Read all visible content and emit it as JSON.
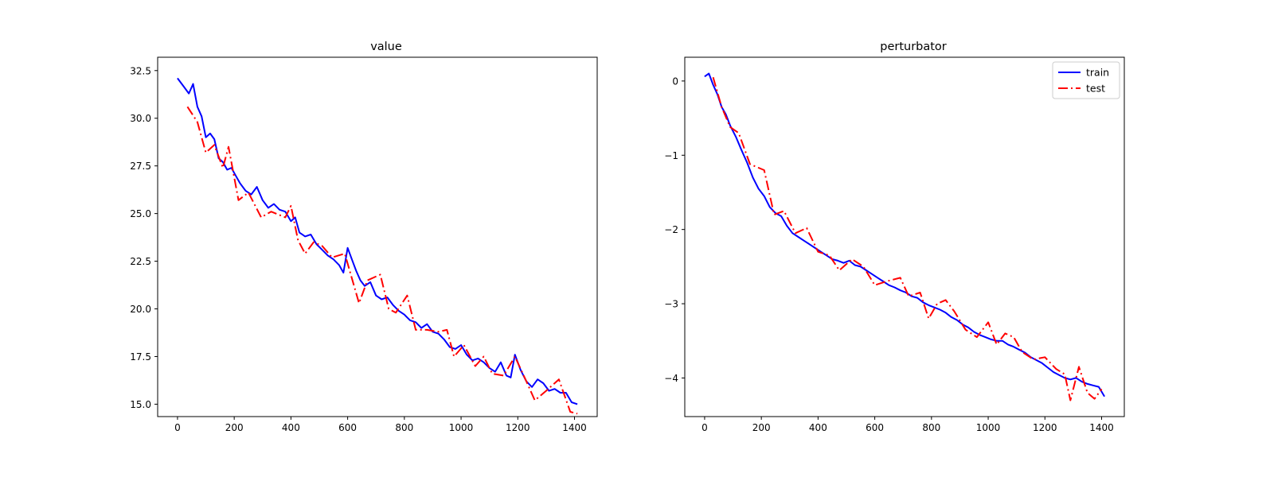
{
  "chart_data": [
    {
      "type": "line",
      "title": "value",
      "xlabel": "",
      "ylabel": "",
      "xlim": [
        -70,
        1480
      ],
      "ylim": [
        14.35,
        33.2
      ],
      "xticks": [
        0,
        200,
        400,
        600,
        800,
        1000,
        1200,
        1400
      ],
      "yticks": [
        15.0,
        17.5,
        20.0,
        22.5,
        25.0,
        27.5,
        30.0,
        32.5
      ],
      "ytick_decimals": 1,
      "grid": false,
      "legend": null,
      "series": [
        {
          "name": "train",
          "color": "#0000ff",
          "style": "solid",
          "x": [
            0,
            20,
            40,
            55,
            70,
            85,
            100,
            115,
            130,
            145,
            160,
            175,
            190,
            205,
            220,
            240,
            260,
            280,
            300,
            320,
            340,
            360,
            380,
            400,
            415,
            430,
            450,
            470,
            490,
            510,
            530,
            550,
            570,
            585,
            600,
            615,
            630,
            645,
            660,
            680,
            700,
            720,
            740,
            760,
            780,
            800,
            820,
            840,
            860,
            880,
            900,
            920,
            940,
            960,
            980,
            1000,
            1020,
            1040,
            1060,
            1080,
            1100,
            1120,
            1140,
            1160,
            1175,
            1190,
            1210,
            1230,
            1250,
            1270,
            1290,
            1310,
            1330,
            1350,
            1370,
            1390,
            1410
          ],
          "y": [
            32.1,
            31.7,
            31.3,
            31.8,
            30.6,
            30.1,
            29.0,
            29.2,
            28.9,
            27.9,
            27.7,
            27.3,
            27.4,
            27.0,
            26.6,
            26.2,
            26.0,
            26.4,
            25.7,
            25.3,
            25.5,
            25.2,
            25.1,
            24.6,
            24.8,
            24.0,
            23.8,
            23.9,
            23.4,
            23.1,
            22.8,
            22.6,
            22.3,
            21.9,
            23.2,
            22.6,
            22.0,
            21.5,
            21.2,
            21.4,
            20.7,
            20.5,
            20.6,
            20.2,
            19.9,
            19.7,
            19.4,
            19.3,
            19.0,
            19.2,
            18.8,
            18.7,
            18.4,
            18.0,
            17.9,
            18.1,
            17.6,
            17.3,
            17.4,
            17.2,
            16.9,
            16.7,
            17.2,
            16.5,
            16.4,
            17.6,
            16.8,
            16.2,
            15.9,
            16.3,
            16.1,
            15.7,
            15.8,
            15.6,
            15.6,
            15.1,
            15.0
          ]
        },
        {
          "name": "test",
          "color": "#ff0000",
          "style": "dashdot",
          "x": [
            35,
            70,
            100,
            130,
            160,
            180,
            215,
            250,
            295,
            330,
            380,
            400,
            425,
            450,
            480,
            510,
            545,
            590,
            640,
            670,
            715,
            745,
            770,
            810,
            840,
            880,
            920,
            950,
            975,
            1010,
            1050,
            1080,
            1110,
            1150,
            1190,
            1230,
            1260,
            1300,
            1345,
            1385,
            1410
          ],
          "y": [
            30.6,
            29.8,
            28.2,
            28.6,
            27.4,
            28.5,
            25.7,
            26.1,
            24.8,
            25.1,
            24.8,
            25.4,
            23.6,
            22.9,
            23.5,
            23.3,
            22.7,
            22.9,
            20.3,
            21.5,
            21.8,
            20.0,
            19.8,
            20.7,
            18.9,
            18.9,
            18.8,
            18.9,
            17.5,
            18.1,
            17.0,
            17.5,
            16.6,
            16.5,
            17.5,
            16.2,
            15.2,
            15.7,
            16.3,
            14.6,
            14.5
          ]
        }
      ]
    },
    {
      "type": "line",
      "title": "perturbator",
      "xlabel": "",
      "ylabel": "",
      "xlim": [
        -70,
        1480
      ],
      "ylim": [
        -4.52,
        0.32
      ],
      "xticks": [
        0,
        200,
        400,
        600,
        800,
        1000,
        1200,
        1400
      ],
      "yticks": [
        0,
        -1,
        -2,
        -3,
        -4
      ],
      "ytick_decimals": 0,
      "grid": false,
      "legend": "top-right",
      "series": [
        {
          "name": "train",
          "color": "#0000ff",
          "style": "solid",
          "x": [
            0,
            15,
            30,
            45,
            60,
            75,
            90,
            110,
            130,
            150,
            170,
            190,
            210,
            230,
            250,
            270,
            290,
            310,
            330,
            350,
            370,
            390,
            410,
            430,
            450,
            470,
            490,
            510,
            530,
            550,
            570,
            590,
            610,
            630,
            650,
            670,
            690,
            710,
            730,
            750,
            770,
            790,
            810,
            830,
            850,
            870,
            890,
            910,
            930,
            950,
            970,
            990,
            1010,
            1030,
            1050,
            1070,
            1090,
            1110,
            1130,
            1150,
            1170,
            1190,
            1210,
            1230,
            1250,
            1270,
            1290,
            1310,
            1330,
            1350,
            1370,
            1390,
            1410
          ],
          "y": [
            0.06,
            0.1,
            -0.05,
            -0.18,
            -0.35,
            -0.45,
            -0.6,
            -0.75,
            -0.93,
            -1.1,
            -1.3,
            -1.45,
            -1.55,
            -1.7,
            -1.78,
            -1.82,
            -1.95,
            -2.05,
            -2.1,
            -2.15,
            -2.2,
            -2.25,
            -2.3,
            -2.35,
            -2.4,
            -2.42,
            -2.45,
            -2.42,
            -2.48,
            -2.5,
            -2.55,
            -2.6,
            -2.65,
            -2.7,
            -2.75,
            -2.78,
            -2.82,
            -2.85,
            -2.9,
            -2.92,
            -2.98,
            -3.02,
            -3.05,
            -3.08,
            -3.12,
            -3.18,
            -3.22,
            -3.28,
            -3.32,
            -3.38,
            -3.42,
            -3.45,
            -3.48,
            -3.5,
            -3.5,
            -3.55,
            -3.58,
            -3.62,
            -3.66,
            -3.72,
            -3.76,
            -3.8,
            -3.86,
            -3.92,
            -3.96,
            -4.0,
            -4.02,
            -4.0,
            -4.05,
            -4.08,
            -4.1,
            -4.12,
            -4.25
          ]
        },
        {
          "name": "test",
          "color": "#ff0000",
          "style": "dashdot",
          "x": [
            30,
            60,
            90,
            120,
            160,
            210,
            245,
            280,
            320,
            360,
            400,
            440,
            475,
            520,
            560,
            600,
            640,
            690,
            720,
            760,
            790,
            820,
            850,
            880,
            920,
            960,
            1000,
            1030,
            1060,
            1090,
            1120,
            1160,
            1200,
            1240,
            1270,
            1290,
            1320,
            1350,
            1375,
            1400
          ],
          "y": [
            0.05,
            -0.35,
            -0.62,
            -0.7,
            -1.12,
            -1.2,
            -1.8,
            -1.75,
            -2.05,
            -1.98,
            -2.3,
            -2.35,
            -2.55,
            -2.4,
            -2.5,
            -2.75,
            -2.7,
            -2.65,
            -2.9,
            -2.85,
            -3.2,
            -3.0,
            -2.95,
            -3.1,
            -3.35,
            -3.45,
            -3.25,
            -3.55,
            -3.4,
            -3.45,
            -3.65,
            -3.75,
            -3.72,
            -3.88,
            -3.95,
            -4.3,
            -3.85,
            -4.2,
            -4.28,
            -4.15
          ]
        }
      ]
    }
  ]
}
